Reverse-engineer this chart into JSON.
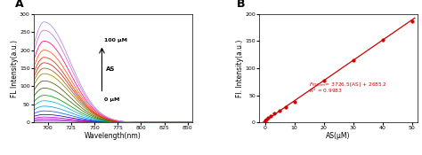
{
  "panel_A": {
    "title": "A",
    "xlabel": "Wavelength(nm)",
    "ylabel": "FL Intensity(a.u.)",
    "xlim": [
      685,
      855
    ],
    "ylim": [
      0,
      300
    ],
    "xticks": [
      700,
      725,
      750,
      775,
      800,
      825,
      850
    ],
    "yticks": [
      0,
      50,
      100,
      150,
      200,
      250,
      300
    ],
    "annotation_top": "100 μM",
    "annotation_bot": "0 μM",
    "annotation_mid": "AS",
    "peak_wavelength": 696,
    "peak_values": [
      5,
      10,
      15,
      22,
      32,
      45,
      60,
      75,
      95,
      115,
      135,
      150,
      165,
      180,
      200,
      225,
      255,
      278
    ],
    "colors": [
      "#7700bb",
      "#9900bb",
      "#cc00cc",
      "#0000dd",
      "#0055ee",
      "#0099dd",
      "#00bbbb",
      "#009900",
      "#336600",
      "#555500",
      "#888800",
      "#aa5500",
      "#cc2200",
      "#ee2200",
      "#ff5500",
      "#ff0088",
      "#dd66cc",
      "#aa88dd"
    ]
  },
  "panel_B": {
    "title": "B",
    "xlabel": "AS(μM)",
    "ylabel": "Fl. Intensity(a.u.)",
    "xlim": [
      -2,
      52
    ],
    "ylim": [
      0,
      200
    ],
    "xticks": [
      0,
      10,
      20,
      30,
      40,
      50
    ],
    "yticks": [
      0,
      50,
      100,
      150,
      200
    ],
    "x_data": [
      0,
      0.5,
      1,
      2,
      3,
      5,
      7,
      10,
      20,
      30,
      40,
      50
    ],
    "y_data": [
      3,
      5,
      8,
      12,
      16,
      21,
      28,
      38,
      77,
      115,
      152,
      187
    ],
    "line_color": "#cc0000",
    "dot_color": "#cc0000",
    "slope": 3.7265,
    "intercept": 2.6852,
    "eq_x": 15,
    "eq_y": 58
  },
  "bg_color": "#ffffff",
  "figure_bg": "#ffffff"
}
